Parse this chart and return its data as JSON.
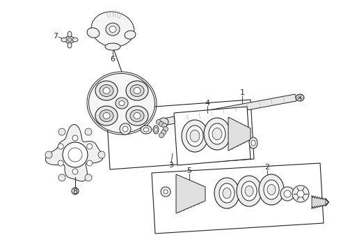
{
  "background_color": "#ffffff",
  "line_color": "#222222",
  "figsize": [
    4.9,
    3.6
  ],
  "dpi": 100,
  "label_fontsize": 8
}
